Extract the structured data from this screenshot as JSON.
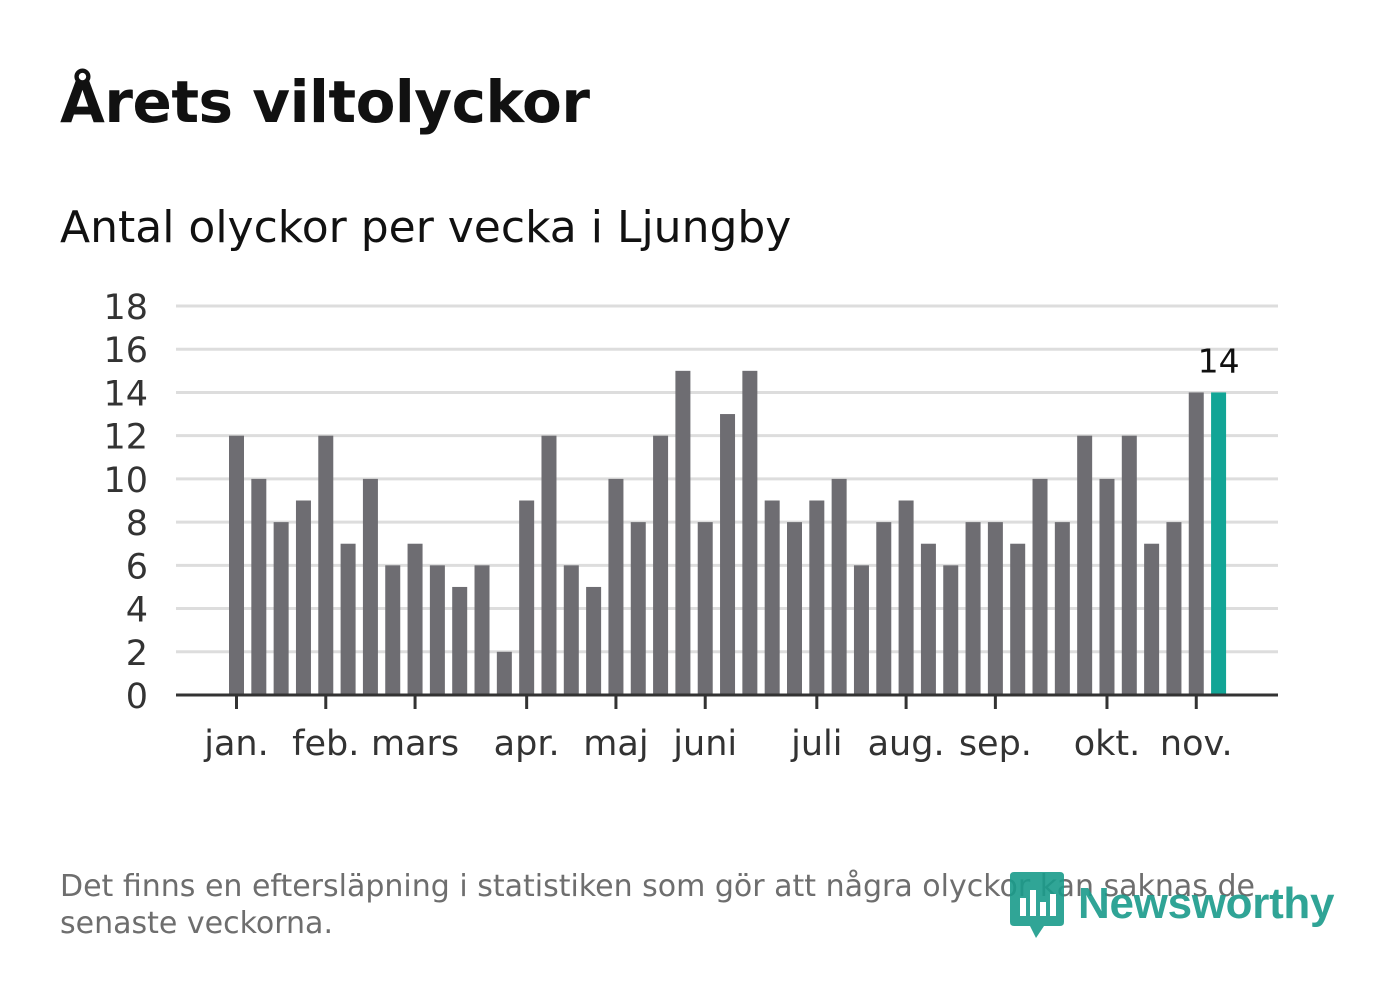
{
  "title": "Årets viltolyckor",
  "subtitle": "Antal olyckor per vecka i Ljungby",
  "footnote": "Det finns en eftersläpning i statistiken som gör att några olyckor kan saknas de senaste veckorna.",
  "logo_text": "Newsworthy",
  "colors": {
    "bar": "#6e6d72",
    "highlight": "#12a596",
    "grid": "#dddddd",
    "axis": "#333333",
    "logo": "#1a9b8b"
  },
  "chart_data": {
    "type": "bar",
    "title": "Antal olyckor per vecka i Ljungby",
    "xlabel": "",
    "ylabel": "",
    "ylim": [
      0,
      18
    ],
    "yticks": [
      0,
      2,
      4,
      6,
      8,
      10,
      12,
      14,
      16,
      18
    ],
    "grid": true,
    "values": [
      12,
      10,
      8,
      9,
      12,
      7,
      10,
      6,
      7,
      6,
      5,
      6,
      2,
      9,
      12,
      6,
      5,
      10,
      8,
      12,
      15,
      8,
      13,
      15,
      9,
      8,
      9,
      10,
      6,
      8,
      9,
      7,
      6,
      8,
      8,
      7,
      10,
      8,
      12,
      10,
      12,
      7,
      8,
      14,
      14
    ],
    "highlight_index": 44,
    "highlight_label": "14",
    "month_labels": [
      {
        "label": "jan.",
        "week_index": 0
      },
      {
        "label": "feb.",
        "week_index": 4
      },
      {
        "label": "mars",
        "week_index": 8
      },
      {
        "label": "apr.",
        "week_index": 13
      },
      {
        "label": "maj",
        "week_index": 17
      },
      {
        "label": "juni",
        "week_index": 21
      },
      {
        "label": "juli",
        "week_index": 26
      },
      {
        "label": "aug.",
        "week_index": 30
      },
      {
        "label": "sep.",
        "week_index": 34
      },
      {
        "label": "okt.",
        "week_index": 39
      },
      {
        "label": "nov.",
        "week_index": 43
      }
    ]
  }
}
